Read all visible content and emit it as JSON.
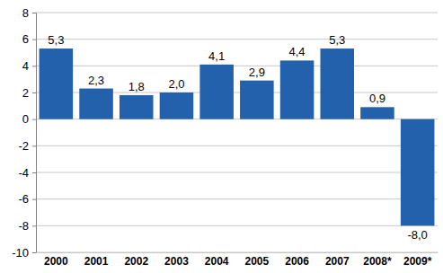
{
  "chart_data": {
    "type": "bar",
    "categories": [
      "2000",
      "2001",
      "2002",
      "2003",
      "2004",
      "2005",
      "2006",
      "2007",
      "2008*",
      "2009*"
    ],
    "values": [
      5.3,
      2.3,
      1.8,
      2.0,
      4.1,
      2.9,
      4.4,
      5.3,
      0.9,
      -8.0
    ],
    "value_labels": [
      "5,3",
      "2,3",
      "1,8",
      "2,0",
      "4,1",
      "2,9",
      "4,4",
      "5,3",
      "0,9",
      "-8,0"
    ],
    "color": "#2461ad",
    "ylim": [
      -10,
      8
    ],
    "yticks": [
      -10,
      -8,
      -6,
      -4,
      -2,
      0,
      2,
      4,
      6,
      8
    ],
    "grid": true,
    "data_labels": true
  }
}
